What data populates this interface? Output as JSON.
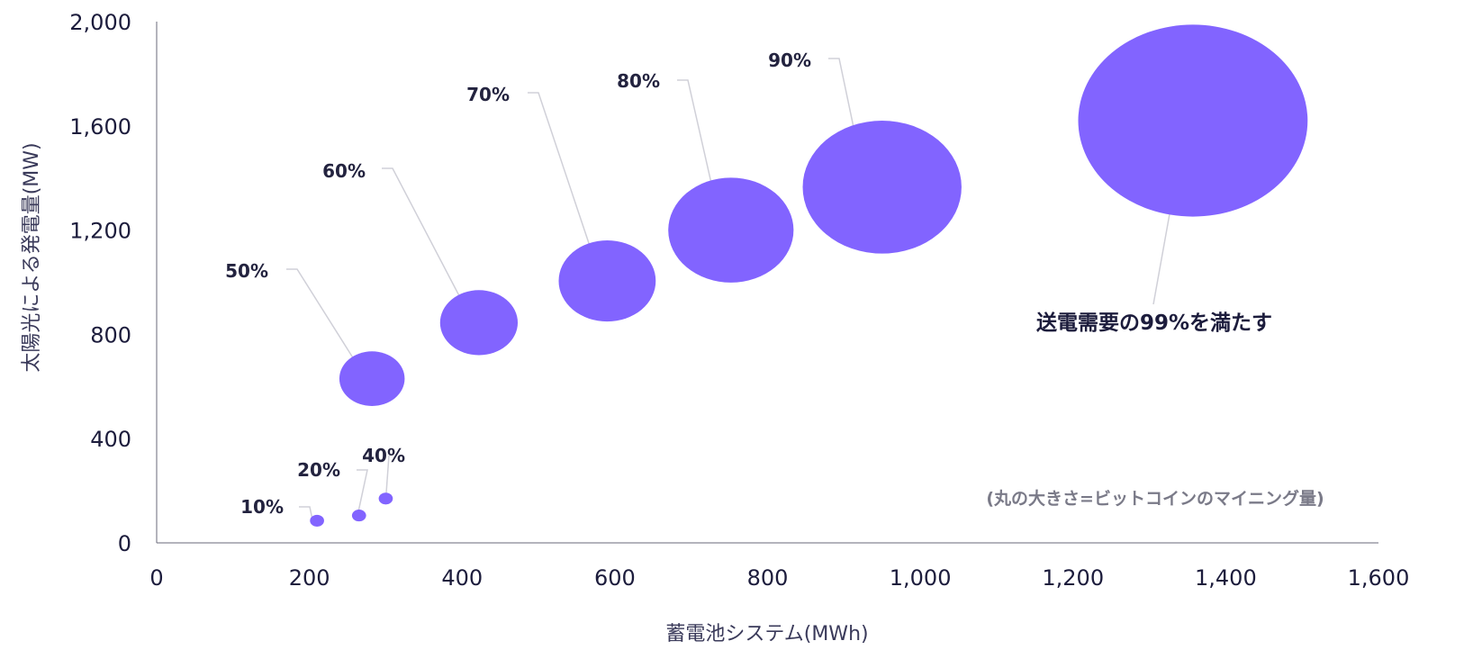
{
  "chart_data": {
    "type": "scatter",
    "title": "",
    "xlabel": "蓄電池システム(MWh)",
    "ylabel": "太陽光による発電量(MW)",
    "xlim": [
      0,
      1600
    ],
    "ylim": [
      0,
      2000
    ],
    "x_ticks": [
      "0",
      "200",
      "400",
      "600",
      "800",
      "1,000",
      "1,200",
      "1,400",
      "1,600"
    ],
    "y_ticks": [
      "0",
      "400",
      "800",
      "1,200",
      "1,600",
      "2,000"
    ],
    "grid": false,
    "bubble_color": "#8264ff",
    "points": [
      {
        "label": "10%",
        "x": 210,
        "y": 85,
        "size": 8
      },
      {
        "label": "20%",
        "x": 265,
        "y": 105,
        "size": 8
      },
      {
        "label": "40%",
        "x": 300,
        "y": 170,
        "size": 8
      },
      {
        "label": "50%",
        "x": 282,
        "y": 630,
        "size": 37
      },
      {
        "label": "60%",
        "x": 422,
        "y": 845,
        "size": 44
      },
      {
        "label": "70%",
        "x": 590,
        "y": 1005,
        "size": 55
      },
      {
        "label": "80%",
        "x": 752,
        "y": 1200,
        "size": 71
      },
      {
        "label": "90%",
        "x": 950,
        "y": 1365,
        "size": 90
      },
      {
        "label": "",
        "x": 1357,
        "y": 1620,
        "size": 130
      }
    ],
    "callout": "送電需要の99%を満たす",
    "note": "(丸の大きさ=ビットコインのマイニング量)"
  }
}
